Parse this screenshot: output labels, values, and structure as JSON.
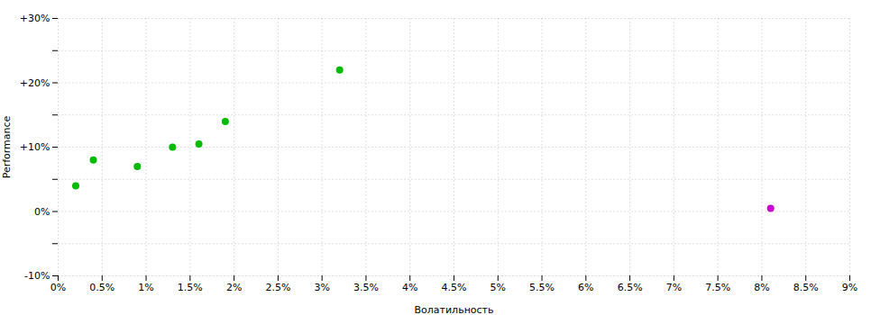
{
  "chart_data": {
    "type": "scatter",
    "xlabel": "Волатильность",
    "ylabel": "Performance",
    "xlim": [
      0,
      0.09
    ],
    "ylim": [
      -0.1,
      0.3
    ],
    "xticks": [
      {
        "value": 0.0,
        "label": "0%"
      },
      {
        "value": 0.005,
        "label": "0.5%"
      },
      {
        "value": 0.01,
        "label": "1%"
      },
      {
        "value": 0.015,
        "label": "1.5%"
      },
      {
        "value": 0.02,
        "label": "2%"
      },
      {
        "value": 0.025,
        "label": "2.5%"
      },
      {
        "value": 0.03,
        "label": "3%"
      },
      {
        "value": 0.035,
        "label": "3.5%"
      },
      {
        "value": 0.04,
        "label": "4%"
      },
      {
        "value": 0.045,
        "label": "4.5%"
      },
      {
        "value": 0.05,
        "label": "5%"
      },
      {
        "value": 0.055,
        "label": "5.5%"
      },
      {
        "value": 0.06,
        "label": "6%"
      },
      {
        "value": 0.065,
        "label": "6.5%"
      },
      {
        "value": 0.07,
        "label": "7%"
      },
      {
        "value": 0.075,
        "label": "7.5%"
      },
      {
        "value": 0.08,
        "label": "8%"
      },
      {
        "value": 0.085,
        "label": "8.5%"
      },
      {
        "value": 0.09,
        "label": "9%"
      }
    ],
    "yticks": [
      {
        "value": -0.1,
        "label": "-10%"
      },
      {
        "value": -0.05,
        "label": null
      },
      {
        "value": 0.0,
        "label": "0%"
      },
      {
        "value": 0.05,
        "label": null
      },
      {
        "value": 0.1,
        "label": "+10%"
      },
      {
        "value": 0.15,
        "label": null
      },
      {
        "value": 0.2,
        "label": "+20%"
      },
      {
        "value": 0.25,
        "label": null
      },
      {
        "value": 0.3,
        "label": "+30%"
      }
    ],
    "grid": true,
    "series": [
      {
        "color": "#00bb00",
        "x": [
          0.002,
          0.004,
          0.009,
          0.013,
          0.016,
          0.019,
          0.032
        ],
        "values": [
          0.04,
          0.08,
          0.07,
          0.1,
          0.105,
          0.14,
          0.22
        ]
      },
      {
        "color": "#cc00cc",
        "x": [
          0.081
        ],
        "values": [
          0.005
        ]
      }
    ]
  }
}
